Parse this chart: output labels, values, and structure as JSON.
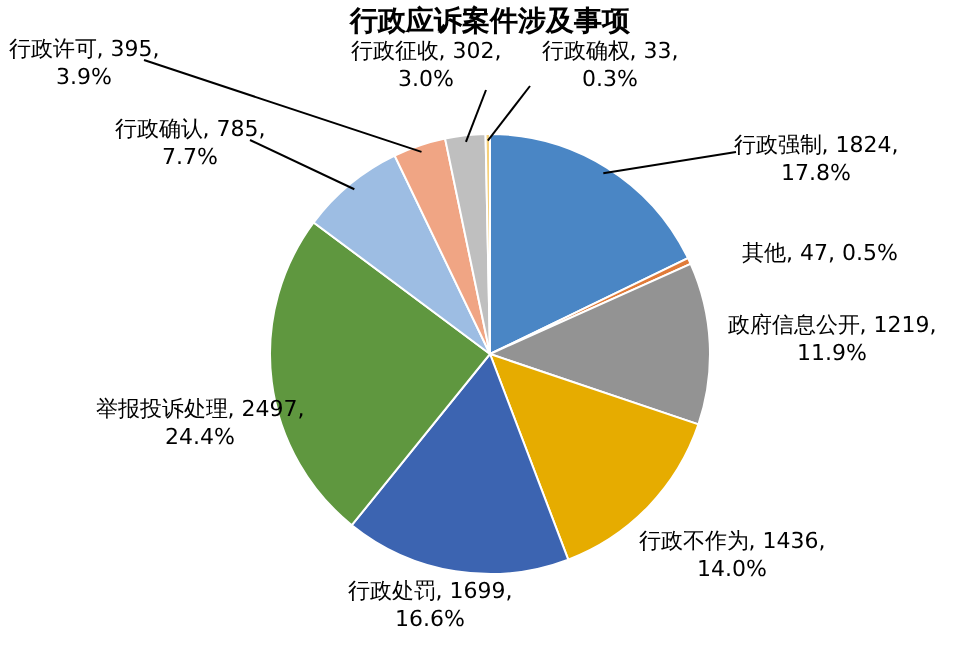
{
  "chart_data": {
    "type": "pie",
    "title": "行政应诉案件涉及事项",
    "categories": [
      "行政强制",
      "其他",
      "政府信息公开",
      "行政不作为",
      "行政处罚",
      "举报投诉处理",
      "行政确认",
      "行政许可",
      "行政征收",
      "行政确权"
    ],
    "values": [
      1824,
      47,
      1219,
      1436,
      1699,
      2497,
      785,
      395,
      302,
      33
    ],
    "value_labels": [
      "1824, 17.8%",
      "47, 0.5%",
      "1219, 11.9%",
      "1436, 14.0%",
      "1699, 16.6%",
      "2497, 24.4%",
      "785, 7.7%",
      "395, 3.9%",
      "302, 3.0%",
      "33, 0.3%"
    ],
    "colors": [
      "#4a86c5",
      "#e07b39",
      "#939393",
      "#e6ac00",
      "#3c64b1",
      "#5f973f",
      "#9dbde3",
      "#f0a584",
      "#bfbfbf",
      "#f5d07a"
    ]
  }
}
